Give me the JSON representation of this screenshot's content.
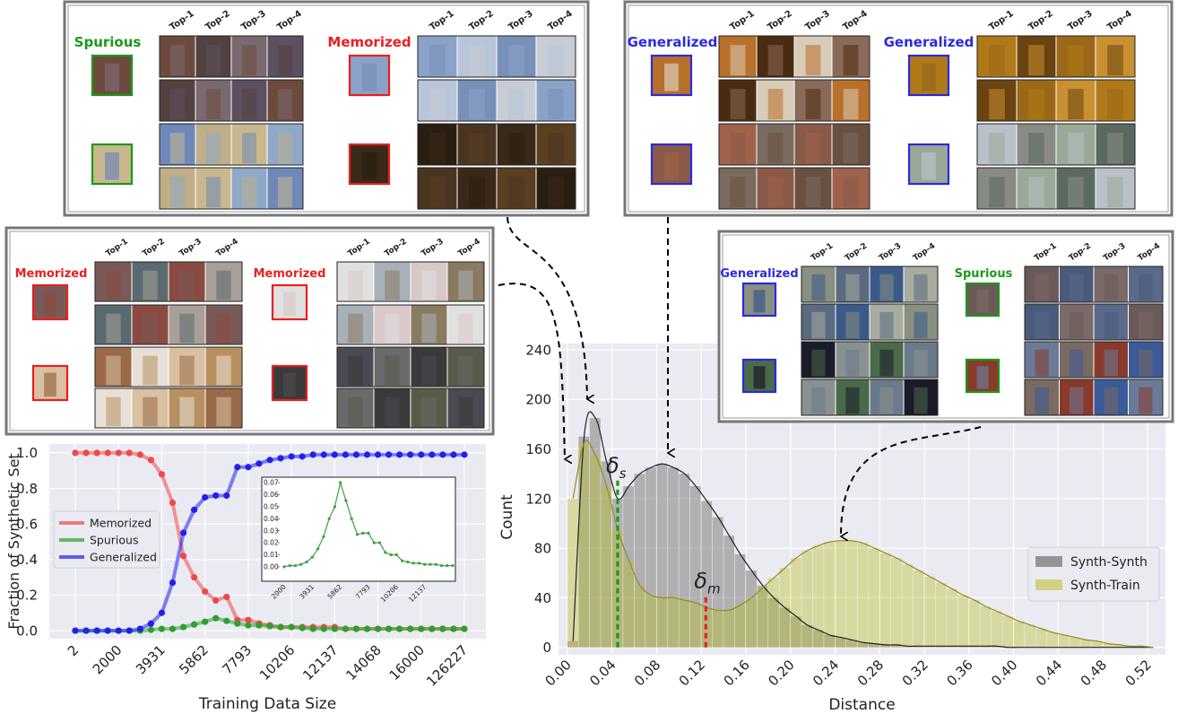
{
  "panels": [
    {
      "groups": [
        {
          "label": "Spurious",
          "color": "#1a9a1a",
          "headers": [
            "Top-1",
            "Top-2",
            "Top-3",
            "Top-4"
          ]
        },
        {
          "label": "Memorized",
          "color": "#e82020",
          "headers": [
            "Top-1",
            "Top-2",
            "Top-3",
            "Top-4"
          ]
        }
      ]
    },
    {
      "groups": [
        {
          "label": "Generalized",
          "color": "#2a2ae0",
          "headers": [
            "Top-1",
            "Top-2",
            "Top-3",
            "Top-4"
          ]
        },
        {
          "label": "Generalized",
          "color": "#2a2ae0",
          "headers": [
            "Top-1",
            "Top-2",
            "Top-3",
            "Top-4"
          ]
        }
      ]
    },
    {
      "groups": [
        {
          "label": "Memorized",
          "color": "#e82020",
          "headers": [
            "Top-1",
            "Top-2",
            "Top-3",
            "Top-4"
          ]
        },
        {
          "label": "Memorized",
          "color": "#e82020",
          "headers": [
            "Top-1",
            "Top-2",
            "Top-3",
            "Top-4"
          ]
        }
      ]
    },
    {
      "groups": [
        {
          "label": "Generalized",
          "color": "#2a2ae0",
          "headers": [
            "Top-1",
            "Top-2",
            "Top-3",
            "Top-4"
          ]
        },
        {
          "label": "Spurious",
          "color": "#1a9a1a",
          "headers": [
            "Top-1",
            "Top-2",
            "Top-3",
            "Top-4"
          ]
        }
      ]
    }
  ],
  "chart_data": [
    {
      "type": "line",
      "xlabel": "Training Data Size",
      "ylabel": "Fraction of Synthetic Set",
      "categories": [
        "2",
        null,
        null,
        null,
        "2000",
        null,
        null,
        null,
        "3931",
        null,
        null,
        null,
        "5862",
        null,
        null,
        null,
        "7793",
        null,
        null,
        null,
        "10206",
        null,
        null,
        null,
        "12137",
        null,
        null,
        null,
        "14068",
        null,
        null,
        null,
        "16000",
        null,
        null,
        null,
        "126227"
      ],
      "series": [
        {
          "name": "Memorized",
          "color": "#f04848",
          "values": [
            1,
            1,
            1,
            1,
            1,
            1,
            0.99,
            0.96,
            0.88,
            0.72,
            0.42,
            0.3,
            0.22,
            0.17,
            0.19,
            0.06,
            0.06,
            0.04,
            0.03,
            0.02,
            0.02,
            0.02,
            0.02,
            0.02,
            0.02,
            0.01,
            0.01,
            0.01,
            0.01,
            0.01,
            0.01,
            0.01,
            0.01,
            0.01,
            0.01,
            0.01,
            0.01
          ]
        },
        {
          "name": "Spurious",
          "color": "#2ea02e",
          "values": [
            0,
            0,
            0,
            0,
            0,
            0,
            0,
            0.005,
            0.01,
            0.01,
            0.02,
            0.035,
            0.05,
            0.07,
            0.055,
            0.04,
            0.03,
            0.03,
            0.025,
            0.02,
            0.02,
            0.015,
            0.01,
            0.01,
            0.01,
            0.01,
            0.01,
            0.01,
            0.01,
            0.01,
            0.01,
            0.01,
            0.01,
            0.01,
            0.01,
            0.01,
            0.01
          ]
        },
        {
          "name": "Generalized",
          "color": "#2020f0",
          "values": [
            0,
            0,
            0,
            0,
            0,
            0,
            0.01,
            0.04,
            0.1,
            0.27,
            0.55,
            0.68,
            0.75,
            0.76,
            0.76,
            0.92,
            0.92,
            0.94,
            0.96,
            0.97,
            0.98,
            0.98,
            0.99,
            0.99,
            0.99,
            0.99,
            0.99,
            0.99,
            0.99,
            0.99,
            0.99,
            0.99,
            0.99,
            0.99,
            0.99,
            0.99,
            0.99
          ]
        }
      ],
      "ylim": [
        -0.045,
        1.05
      ],
      "yticks": [
        {
          "value": 0,
          "label": "0.0"
        },
        {
          "value": 0.2,
          "label": "0.2"
        },
        {
          "value": 0.4,
          "label": "0.4"
        },
        {
          "value": 0.6,
          "label": "0.6"
        },
        {
          "value": 0.8,
          "label": "0.8"
        },
        {
          "value": 1,
          "label": "1.0"
        }
      ],
      "grid": true,
      "legend": "center left"
    },
    {
      "type": "line",
      "categories": [
        "2000",
        null,
        null,
        null,
        null,
        "3931",
        null,
        null,
        null,
        null,
        "5862",
        null,
        null,
        null,
        null,
        "7793",
        null,
        null,
        null,
        null,
        "10206",
        null,
        null,
        null,
        null,
        "12137",
        null,
        null,
        null,
        null,
        null
      ],
      "series": [
        {
          "color": "#3fa03f",
          "values": [
            0,
            0.001,
            0.001,
            0.002,
            0.004,
            0.008,
            0.015,
            0.025,
            0.04,
            0.05,
            0.07,
            0.055,
            0.04,
            0.027,
            0.028,
            0.028,
            0.02,
            0.02,
            0.012,
            0.01,
            0.01,
            0.005,
            0.004,
            0.003,
            0.003,
            0.002,
            0.002,
            0.002,
            0.001,
            0.001,
            0.001
          ]
        }
      ],
      "ylim": [
        -0.012,
        0.0745
      ],
      "yticks": [
        {
          "value": 0,
          "label": "0.00"
        },
        {
          "value": 0.01,
          "label": "0.01"
        },
        {
          "value": 0.02,
          "label": "0.02"
        },
        {
          "value": 0.03,
          "label": "0.03"
        },
        {
          "value": 0.04,
          "label": "0.04"
        },
        {
          "value": 0.05,
          "label": "0.05"
        },
        {
          "value": 0.06,
          "label": "0.06"
        },
        {
          "value": 0.07,
          "label": "0.07"
        }
      ],
      "grid": false
    },
    {
      "type": "histogram",
      "xlabel": "Distance",
      "ylabel": "Count",
      "bins": [
        0,
        0.01,
        0.02,
        0.03,
        0.04,
        0.05,
        0.06,
        0.07,
        0.08,
        0.09,
        0.1,
        0.11,
        0.12,
        0.13,
        0.14,
        0.15,
        0.16,
        0.17,
        0.18,
        0.19,
        0.2,
        0.21,
        0.22,
        0.23,
        0.24,
        0.25,
        0.26,
        0.27,
        0.28,
        0.29,
        0.3,
        0.31,
        0.32,
        0.33,
        0.34,
        0.35,
        0.36,
        0.37,
        0.38,
        0.39,
        0.4,
        0.41,
        0.42,
        0.43,
        0.44,
        0.45,
        0.46,
        0.47,
        0.48,
        0.49,
        0.5,
        0.51,
        0.52,
        0.53
      ],
      "series": [
        {
          "name": "Synth-Synth",
          "color": "#7f7f7f",
          "line_color": "#222222",
          "values": [
            5,
            170,
            185,
            150,
            120,
            130,
            140,
            145,
            148,
            145,
            140,
            130,
            118,
            105,
            90,
            75,
            62,
            50,
            40,
            32,
            25,
            18,
            14,
            10,
            8,
            6,
            4,
            3,
            2,
            2,
            1,
            1,
            1,
            1,
            1,
            1,
            1,
            1,
            1,
            0,
            0,
            0,
            0,
            0,
            0,
            0,
            0,
            0,
            0,
            0,
            0,
            0,
            0
          ]
        },
        {
          "name": "Synth-Train",
          "color": "#bcbd22",
          "line_color": "#8f8f1c",
          "values": [
            120,
            165,
            155,
            130,
            95,
            70,
            50,
            42,
            40,
            40,
            38,
            36,
            32,
            30,
            30,
            34,
            40,
            48,
            56,
            64,
            72,
            78,
            82,
            85,
            86,
            86,
            84,
            80,
            76,
            72,
            67,
            62,
            57,
            52,
            47,
            42,
            38,
            33,
            29,
            25,
            21,
            18,
            15,
            12,
            10,
            8,
            6,
            5,
            3,
            2,
            1,
            1,
            0
          ]
        }
      ],
      "xlim": [
        -0.008,
        0.536
      ],
      "ylim": [
        -6,
        245
      ],
      "xticks": [
        {
          "value": 0,
          "label": "0.00"
        },
        {
          "value": 0.04,
          "label": "0.04"
        },
        {
          "value": 0.08,
          "label": "0.08"
        },
        {
          "value": 0.12,
          "label": "0.12"
        },
        {
          "value": 0.16,
          "label": "0.16"
        },
        {
          "value": 0.2,
          "label": "0.20"
        },
        {
          "value": 0.24,
          "label": "0.24"
        },
        {
          "value": 0.28,
          "label": "0.28"
        },
        {
          "value": 0.32,
          "label": "0.32"
        },
        {
          "value": 0.36,
          "label": "0.36"
        },
        {
          "value": 0.4,
          "label": "0.40"
        },
        {
          "value": 0.44,
          "label": "0.44"
        },
        {
          "value": 0.48,
          "label": "0.48"
        },
        {
          "value": 0.52,
          "label": "0.52"
        }
      ],
      "yticks": [
        0,
        40,
        80,
        120,
        160,
        200,
        240
      ],
      "grid": true,
      "legend": "lower right",
      "annotations": [
        {
          "text": "δ",
          "subscript": "s",
          "x": 0.045,
          "y": 135,
          "color": "#1a9a1a"
        },
        {
          "text": "δ",
          "subscript": "m",
          "x": 0.124,
          "y": 42,
          "color": "#e82020"
        }
      ]
    }
  ]
}
